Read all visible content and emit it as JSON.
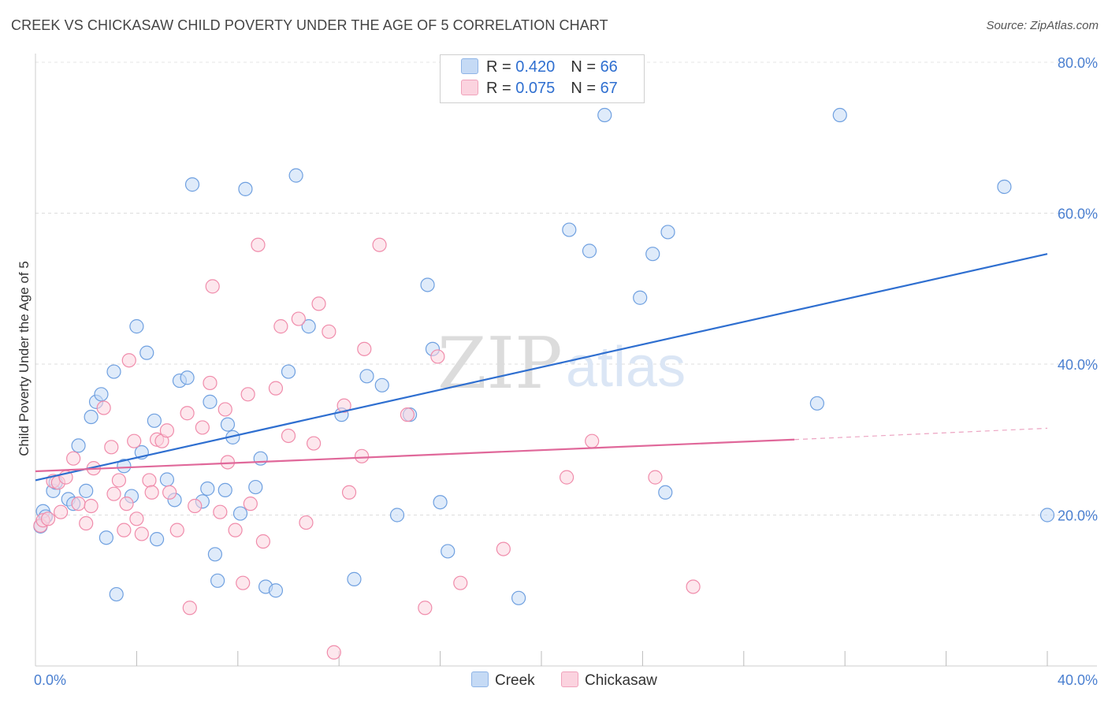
{
  "header": {
    "title": "CREEK VS CHICKASAW CHILD POVERTY UNDER THE AGE OF 5 CORRELATION CHART",
    "source": "Source: ZipAtlas.com"
  },
  "watermark": {
    "zip": "ZIP",
    "atlas": "atlas"
  },
  "legend": {
    "rows": [
      {
        "r_label": "R = ",
        "r_value": "0.420",
        "n_label": "N = ",
        "n_value": "66",
        "color": "#a8c8f0"
      },
      {
        "r_label": "R = ",
        "r_value": "0.075",
        "n_label": "N = ",
        "n_value": "67",
        "color": "#f5b8cc"
      }
    ]
  },
  "chart_data": {
    "type": "scatter",
    "title": "CREEK VS CHICKASAW CHILD POVERTY UNDER THE AGE OF 5 CORRELATION CHART",
    "xlabel": "",
    "ylabel": "Child Poverty Under the Age of 5",
    "xlim": [
      0,
      40
    ],
    "ylim": [
      0,
      80
    ],
    "x_tick_labels": [
      {
        "value": 0,
        "label": "0.0%"
      },
      {
        "value": 40,
        "label": "40.0%"
      }
    ],
    "y_tick_labels": [
      {
        "value": 20,
        "label": "20.0%"
      },
      {
        "value": 40,
        "label": "40.0%"
      },
      {
        "value": 60,
        "label": "60.0%"
      },
      {
        "value": 80,
        "label": "80.0%"
      }
    ],
    "grid": true,
    "legend_position": "top-center",
    "series": [
      {
        "name": "Creek",
        "color": "#6fa0e0",
        "fill": "#c5daf5",
        "trend": {
          "x": [
            0,
            40
          ],
          "y": [
            24.6,
            54.6
          ],
          "color": "#2f6fd0"
        },
        "points": [
          [
            0.3,
            20.5
          ],
          [
            0.4,
            19.8
          ],
          [
            0.7,
            23.2
          ],
          [
            0.8,
            24.3
          ],
          [
            1.3,
            22.1
          ],
          [
            1.5,
            21.5
          ],
          [
            1.7,
            29.2
          ],
          [
            2.0,
            23.2
          ],
          [
            2.2,
            33.0
          ],
          [
            2.4,
            35.0
          ],
          [
            2.6,
            36.0
          ],
          [
            2.8,
            17.0
          ],
          [
            3.1,
            39.0
          ],
          [
            3.2,
            9.5
          ],
          [
            3.5,
            26.5
          ],
          [
            3.8,
            22.5
          ],
          [
            4.0,
            45.0
          ],
          [
            4.2,
            28.3
          ],
          [
            4.4,
            41.5
          ],
          [
            4.7,
            32.5
          ],
          [
            4.8,
            16.8
          ],
          [
            5.2,
            24.7
          ],
          [
            5.5,
            22.0
          ],
          [
            5.7,
            37.8
          ],
          [
            6.0,
            38.2
          ],
          [
            6.2,
            63.8
          ],
          [
            6.6,
            21.8
          ],
          [
            6.8,
            23.5
          ],
          [
            6.9,
            35.0
          ],
          [
            7.1,
            14.8
          ],
          [
            7.2,
            11.3
          ],
          [
            7.5,
            23.3
          ],
          [
            7.6,
            32.0
          ],
          [
            7.8,
            30.3
          ],
          [
            8.1,
            20.2
          ],
          [
            8.3,
            63.2
          ],
          [
            8.7,
            23.7
          ],
          [
            8.9,
            27.5
          ],
          [
            9.1,
            10.5
          ],
          [
            9.5,
            10.0
          ],
          [
            10.0,
            39.0
          ],
          [
            10.3,
            65.0
          ],
          [
            10.8,
            45.0
          ],
          [
            12.1,
            33.3
          ],
          [
            12.6,
            11.5
          ],
          [
            13.1,
            38.4
          ],
          [
            13.7,
            37.2
          ],
          [
            14.3,
            20.0
          ],
          [
            14.8,
            33.3
          ],
          [
            15.5,
            50.5
          ],
          [
            15.7,
            42.0
          ],
          [
            16.0,
            21.7
          ],
          [
            16.3,
            15.2
          ],
          [
            19.1,
            9.0
          ],
          [
            21.1,
            57.8
          ],
          [
            21.9,
            55.0
          ],
          [
            22.5,
            73.0
          ],
          [
            23.9,
            48.8
          ],
          [
            24.4,
            54.6
          ],
          [
            24.9,
            23.0
          ],
          [
            25.0,
            57.5
          ],
          [
            30.9,
            34.8
          ],
          [
            31.8,
            73.0
          ],
          [
            38.3,
            63.5
          ],
          [
            40.0,
            20.0
          ],
          [
            0.2,
            18.5
          ]
        ]
      },
      {
        "name": "Chickasaw",
        "color": "#f08cab",
        "fill": "#fbd3df",
        "trend": {
          "x": [
            0,
            30
          ],
          "y": [
            25.8,
            30.0
          ],
          "color": "#e0689a",
          "dashed_extension": {
            "x": [
              30,
              40
            ],
            "y": [
              30.0,
              31.5
            ]
          }
        },
        "points": [
          [
            0.2,
            18.6
          ],
          [
            0.3,
            19.3
          ],
          [
            0.5,
            19.5
          ],
          [
            0.7,
            24.5
          ],
          [
            0.9,
            24.3
          ],
          [
            1.0,
            20.4
          ],
          [
            1.2,
            25.0
          ],
          [
            1.5,
            27.5
          ],
          [
            1.7,
            21.5
          ],
          [
            2.0,
            18.9
          ],
          [
            2.2,
            21.2
          ],
          [
            2.3,
            26.2
          ],
          [
            2.7,
            34.2
          ],
          [
            3.0,
            29.0
          ],
          [
            3.1,
            22.8
          ],
          [
            3.3,
            24.6
          ],
          [
            3.5,
            18.0
          ],
          [
            3.6,
            21.5
          ],
          [
            3.7,
            40.5
          ],
          [
            3.9,
            29.8
          ],
          [
            4.0,
            19.5
          ],
          [
            4.2,
            17.5
          ],
          [
            4.5,
            24.6
          ],
          [
            4.6,
            23.0
          ],
          [
            4.8,
            30.0
          ],
          [
            5.0,
            29.8
          ],
          [
            5.2,
            31.2
          ],
          [
            5.3,
            23.0
          ],
          [
            5.6,
            18.0
          ],
          [
            6.0,
            33.5
          ],
          [
            6.1,
            7.7
          ],
          [
            6.3,
            21.2
          ],
          [
            6.6,
            31.6
          ],
          [
            6.9,
            37.5
          ],
          [
            7.0,
            50.3
          ],
          [
            7.3,
            20.4
          ],
          [
            7.5,
            34.0
          ],
          [
            7.6,
            27.0
          ],
          [
            7.9,
            18.0
          ],
          [
            8.2,
            11.0
          ],
          [
            8.4,
            36.0
          ],
          [
            8.5,
            21.5
          ],
          [
            9.0,
            16.5
          ],
          [
            9.5,
            36.8
          ],
          [
            9.7,
            45.0
          ],
          [
            10.0,
            30.5
          ],
          [
            10.4,
            46.0
          ],
          [
            10.7,
            19.0
          ],
          [
            11.0,
            29.5
          ],
          [
            11.2,
            48.0
          ],
          [
            11.6,
            44.3
          ],
          [
            11.8,
            1.8
          ],
          [
            12.2,
            34.5
          ],
          [
            12.4,
            23.0
          ],
          [
            12.9,
            27.8
          ],
          [
            13.0,
            42.0
          ],
          [
            13.6,
            55.8
          ],
          [
            14.7,
            33.3
          ],
          [
            15.4,
            7.7
          ],
          [
            15.9,
            41.0
          ],
          [
            16.8,
            11.0
          ],
          [
            18.5,
            15.5
          ],
          [
            21.0,
            25.0
          ],
          [
            22.0,
            29.8
          ],
          [
            24.5,
            25.0
          ],
          [
            26.0,
            10.5
          ],
          [
            8.8,
            55.8
          ]
        ]
      }
    ]
  },
  "bottom_legend": [
    {
      "label": "Creek",
      "color": "#a8c8f0"
    },
    {
      "label": "Chickasaw",
      "color": "#f5b8cc"
    }
  ]
}
